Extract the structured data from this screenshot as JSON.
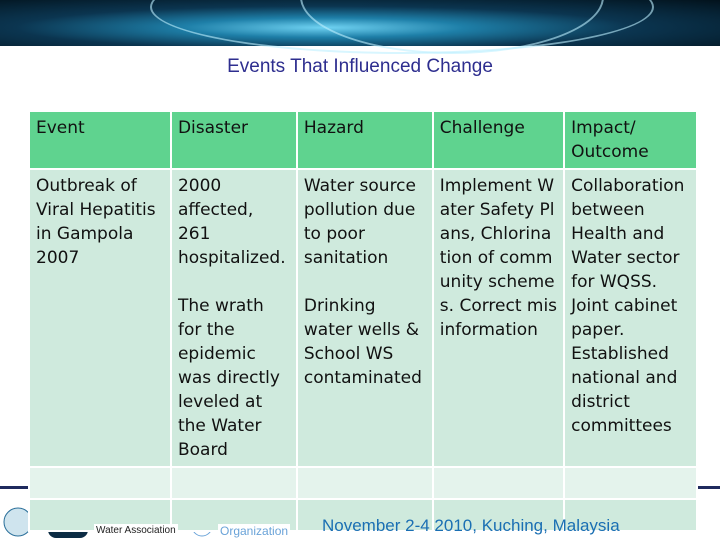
{
  "title": "Events That Influenced Change",
  "table": {
    "headers": [
      "Event",
      "Disaster",
      "Hazard",
      "Challenge",
      "Impact/ Outcome"
    ],
    "row": {
      "event": "Outbreak of Viral Hepatitis in Gampola 2007",
      "disaster_1": "2000 affected, 261 hospitalized.",
      "disaster_2": "The wrath for the epidemic was directly leveled at the Water Board",
      "hazard_1": "Water source pollution due to poor sanitation",
      "hazard_2": "Drinking water wells & School WS contaminated",
      "challenge": "Implement Water Safety Plans, Chlorination of community schemes. Correct misinformation",
      "impact": "Collaboration between Health and Water sector for WQSS. Joint cabinet paper. Established national and district committees"
    }
  },
  "footer": {
    "text": "November 2-4 2010, Kuching, Malaysia",
    "logo_texts": [
      "Water Association",
      "Organization"
    ]
  }
}
